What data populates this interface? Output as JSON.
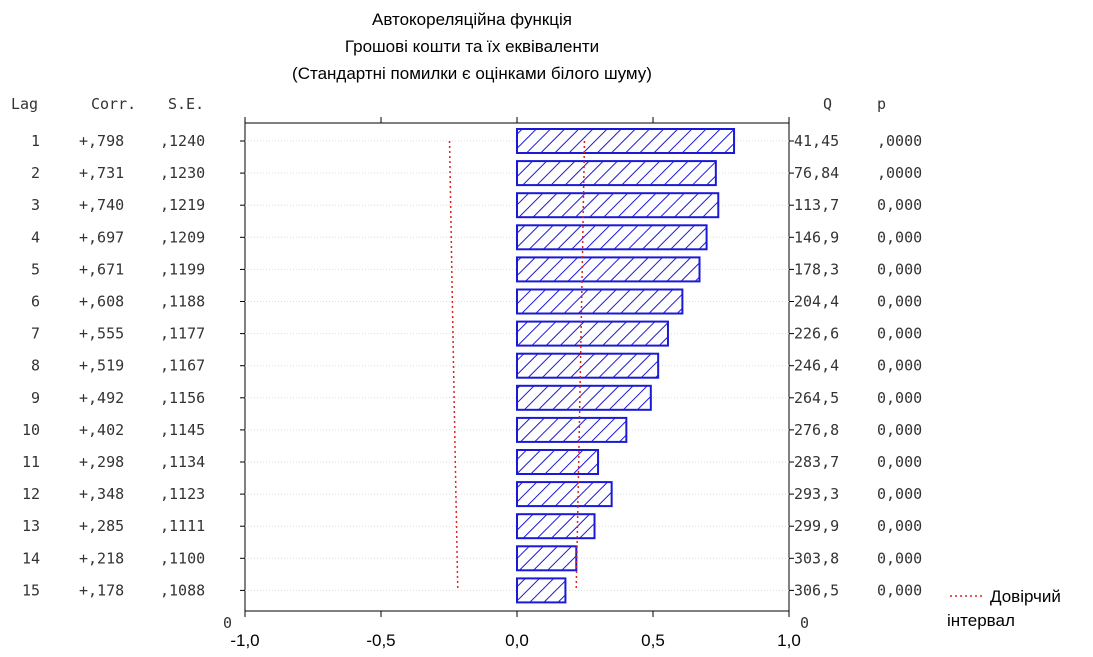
{
  "chart_data": {
    "type": "bar",
    "orientation": "horizontal",
    "title_lines": [
      "Автокореляційна функція",
      "Грошові кошти та їх еквіваленти",
      "(Стандартні помилки є оцінками білого шуму)"
    ],
    "left_headers": {
      "lag": "Lag",
      "corr": "Corr.",
      "se": "S.E."
    },
    "right_headers": {
      "q": "Q",
      "p": "p"
    },
    "rows": [
      {
        "lag": "1",
        "corr_text": "+,798",
        "se_text": ",1240",
        "q_text": "41,45",
        "p_text": ",0000",
        "value": 0.798,
        "se": 0.124
      },
      {
        "lag": "2",
        "corr_text": "+,731",
        "se_text": ",1230",
        "q_text": "76,84",
        "p_text": ",0000",
        "value": 0.731,
        "se": 0.123
      },
      {
        "lag": "3",
        "corr_text": "+,740",
        "se_text": ",1219",
        "q_text": "113,7",
        "p_text": "0,000",
        "value": 0.74,
        "se": 0.1219
      },
      {
        "lag": "4",
        "corr_text": "+,697",
        "se_text": ",1209",
        "q_text": "146,9",
        "p_text": "0,000",
        "value": 0.697,
        "se": 0.1209
      },
      {
        "lag": "5",
        "corr_text": "+,671",
        "se_text": ",1199",
        "q_text": "178,3",
        "p_text": "0,000",
        "value": 0.671,
        "se": 0.1199
      },
      {
        "lag": "6",
        "corr_text": "+,608",
        "se_text": ",1188",
        "q_text": "204,4",
        "p_text": "0,000",
        "value": 0.608,
        "se": 0.1188
      },
      {
        "lag": "7",
        "corr_text": "+,555",
        "se_text": ",1177",
        "q_text": "226,6",
        "p_text": "0,000",
        "value": 0.555,
        "se": 0.1177
      },
      {
        "lag": "8",
        "corr_text": "+,519",
        "se_text": ",1167",
        "q_text": "246,4",
        "p_text": "0,000",
        "value": 0.519,
        "se": 0.1167
      },
      {
        "lag": "9",
        "corr_text": "+,492",
        "se_text": ",1156",
        "q_text": "264,5",
        "p_text": "0,000",
        "value": 0.492,
        "se": 0.1156
      },
      {
        "lag": "10",
        "corr_text": "+,402",
        "se_text": ",1145",
        "q_text": "276,8",
        "p_text": "0,000",
        "value": 0.402,
        "se": 0.1145
      },
      {
        "lag": "11",
        "corr_text": "+,298",
        "se_text": ",1134",
        "q_text": "283,7",
        "p_text": "0,000",
        "value": 0.298,
        "se": 0.1134
      },
      {
        "lag": "12",
        "corr_text": "+,348",
        "se_text": ",1123",
        "q_text": "293,3",
        "p_text": "0,000",
        "value": 0.348,
        "se": 0.1123
      },
      {
        "lag": "13",
        "corr_text": "+,285",
        "se_text": ",1111",
        "q_text": "299,9",
        "p_text": "0,000",
        "value": 0.285,
        "se": 0.1111
      },
      {
        "lag": "14",
        "corr_text": "+,218",
        "se_text": ",1100",
        "q_text": "303,8",
        "p_text": "0,000",
        "value": 0.218,
        "se": 0.11
      },
      {
        "lag": "15",
        "corr_text": "+,178",
        "se_text": ",1088",
        "q_text": "306,5",
        "p_text": "0,000",
        "value": 0.178,
        "se": 0.1088
      }
    ],
    "bottom_left_label": "0",
    "bottom_right_label": "0",
    "xlim": [
      -1.0,
      1.0
    ],
    "x_ticks": [
      -1.0,
      -0.5,
      0.0,
      0.5,
      1.0
    ],
    "x_tick_labels": [
      "-1,0",
      "-0,5",
      "0,0",
      "0,5",
      "1,0"
    ],
    "legend": {
      "label_line1": "Довірчий",
      "label_line2": "інтервал",
      "placement": "bottom-right"
    },
    "colors": {
      "bar": "#1a1ad6",
      "confidence": "#e02020",
      "grid": "#dddddd",
      "axis": "#000000"
    }
  }
}
